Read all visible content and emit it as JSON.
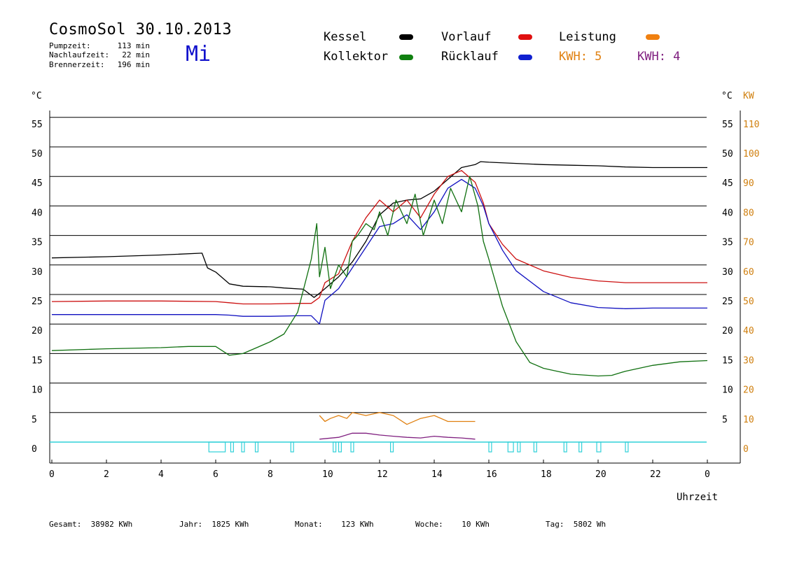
{
  "header": {
    "title": "CosmoSol 30.10.2013",
    "day": "Mi",
    "info": [
      {
        "label": "Pumpzeit:",
        "value": "113 min"
      },
      {
        "label": "Nachlaufzeit:",
        "value": "22 min"
      },
      {
        "label": "Brennerzeit:",
        "value": "196 min"
      }
    ]
  },
  "legend": {
    "kessel": {
      "label": "Kessel",
      "color": "#000000"
    },
    "vorlauf": {
      "label": "Vorlauf",
      "color": "#e01010"
    },
    "leistung": {
      "label": "Leistung",
      "color": "#f08010"
    },
    "kollektor": {
      "label": "Kollektor",
      "color": "#108010"
    },
    "ruecklauf": {
      "label": "Rücklauf",
      "color": "#1020d0"
    },
    "kwh1": {
      "label": "KWH: 5",
      "color": "#e08010"
    },
    "kwh2": {
      "label": "KWH: 4",
      "color": "#802080"
    }
  },
  "footer": {
    "gesamt": {
      "label": "Gesamt:",
      "value": "38982 KWh"
    },
    "jahr": {
      "label": "Jahr:",
      "value": "1825 KWh"
    },
    "monat": {
      "label": "Monat:",
      "value": "123 KWh"
    },
    "woche": {
      "label": "Woche:",
      "value": "10 KWh"
    },
    "tag": {
      "label": "Tag:",
      "value": "5802 Wh"
    }
  },
  "chart_data": {
    "type": "line",
    "xlabel": "Uhrzeit",
    "ylabel_left": "°C",
    "ylabel_right_1": "°C",
    "ylabel_right_2": "KW",
    "x_ticks": [
      "0",
      "2",
      "4",
      "6",
      "8",
      "10",
      "12",
      "14",
      "16",
      "18",
      "20",
      "22",
      "0"
    ],
    "y_ticks_left": [
      "0",
      "5",
      "10",
      "15",
      "20",
      "25",
      "30",
      "35",
      "40",
      "45",
      "50",
      "55"
    ],
    "y_ticks_right_c": [
      "5",
      "10",
      "15",
      "20",
      "25",
      "30",
      "35",
      "40",
      "45",
      "50",
      "55"
    ],
    "y_ticks_right_kw": [
      "0",
      "10",
      "20",
      "30",
      "40",
      "50",
      "60",
      "70",
      "80",
      "90",
      "100",
      "110"
    ],
    "xlim": [
      0,
      24
    ],
    "ylim": [
      -3.5,
      58
    ],
    "grid": true,
    "colors": {
      "kessel": "#000000",
      "vorlauf": "#cc1010",
      "ruecklauf": "#1010c0",
      "kollektor": "#107010",
      "leistung": "#e08010",
      "kwh": "#802080",
      "pumpe": "#30d0d8"
    },
    "series": [
      {
        "name": "Kessel",
        "x": [
          0,
          2,
          4,
          5.5,
          5.7,
          6,
          6.5,
          7,
          8,
          8.5,
          9.2,
          9.6,
          9.8,
          10,
          10.5,
          11,
          11.5,
          12,
          12.5,
          13,
          13.5,
          14,
          14.5,
          15,
          15.5,
          15.7,
          16,
          17,
          18,
          19,
          20,
          21,
          22,
          23,
          24
        ],
        "y": [
          31.2,
          31.4,
          31.7,
          32.0,
          29.5,
          28.8,
          26.8,
          26.4,
          26.3,
          26.1,
          25.9,
          24.5,
          25.2,
          26.0,
          28.0,
          30.5,
          34.0,
          38.5,
          40.5,
          41.0,
          41.2,
          42.5,
          44.5,
          46.5,
          47.0,
          47.5,
          47.4,
          47.2,
          47.0,
          46.9,
          46.8,
          46.6,
          46.5,
          46.5,
          46.5
        ]
      },
      {
        "name": "Vorlauf",
        "x": [
          0,
          2,
          4,
          6,
          6.5,
          7,
          8,
          9,
          9.5,
          9.8,
          10,
          10.5,
          11,
          11.5,
          12,
          12.5,
          13,
          13.5,
          14,
          14.5,
          15,
          15.5,
          15.8,
          16,
          16.5,
          17,
          18,
          19,
          20,
          21,
          22,
          23,
          24
        ],
        "y": [
          23.8,
          23.9,
          23.9,
          23.8,
          23.6,
          23.4,
          23.4,
          23.5,
          23.5,
          24.5,
          27.0,
          28.5,
          34.0,
          38.0,
          41.0,
          39.0,
          41.0,
          38.0,
          42.0,
          45.0,
          46.0,
          44.0,
          40.5,
          37.0,
          33.5,
          31.0,
          29.0,
          27.9,
          27.3,
          27.0,
          27.0,
          27.0,
          27.0
        ]
      },
      {
        "name": "Rücklauf",
        "x": [
          0,
          2,
          4,
          6,
          6.5,
          7,
          8,
          9,
          9.5,
          9.8,
          10,
          10.5,
          11,
          11.5,
          12,
          12.5,
          13,
          13.5,
          14,
          14.5,
          15,
          15.5,
          15.8,
          16,
          16.5,
          17,
          18,
          19,
          20,
          21,
          22,
          23,
          24
        ],
        "y": [
          21.6,
          21.6,
          21.6,
          21.6,
          21.5,
          21.3,
          21.3,
          21.4,
          21.4,
          20.0,
          24.0,
          26.0,
          29.5,
          33.0,
          36.5,
          37.0,
          38.5,
          36.0,
          39.0,
          43.0,
          44.5,
          43.0,
          40.0,
          37.0,
          32.5,
          29.0,
          25.5,
          23.6,
          22.8,
          22.6,
          22.7,
          22.7,
          22.7
        ]
      },
      {
        "name": "Kollektor",
        "x": [
          0,
          2,
          4,
          5,
          6,
          6.5,
          7,
          7.5,
          8,
          8.5,
          9,
          9.5,
          9.7,
          9.8,
          10,
          10.2,
          10.5,
          10.8,
          11,
          11.2,
          11.5,
          11.8,
          12,
          12.3,
          12.6,
          13,
          13.3,
          13.6,
          14,
          14.3,
          14.6,
          15,
          15.3,
          15.6,
          15.8,
          16,
          16.5,
          17,
          17.5,
          18,
          18.5,
          19,
          20,
          20.5,
          21,
          22,
          23,
          24
        ],
        "y": [
          15.5,
          15.8,
          16.0,
          16.2,
          16.2,
          14.7,
          15.0,
          16.0,
          17.0,
          18.3,
          22.0,
          31.0,
          37.0,
          28.0,
          33.0,
          26.0,
          30.0,
          28.0,
          34.0,
          35.0,
          37.0,
          36.0,
          39.0,
          35.0,
          41.0,
          37.0,
          42.0,
          35.0,
          41.0,
          37.0,
          43.0,
          39.0,
          45.0,
          40.0,
          34.0,
          31.0,
          23.0,
          17.0,
          13.5,
          12.5,
          12.0,
          11.5,
          11.2,
          11.3,
          12.0,
          13.0,
          13.6,
          13.8
        ]
      },
      {
        "name": "Leistung",
        "x": [
          9.8,
          10.0,
          10.2,
          10.5,
          10.8,
          11.0,
          11.5,
          12.0,
          12.5,
          13.0,
          13.5,
          14.0,
          14.5,
          15.0,
          15.5
        ],
        "y": [
          4.5,
          3.5,
          4.0,
          4.5,
          4.0,
          5.0,
          4.5,
          5.0,
          4.5,
          3.0,
          4.0,
          4.5,
          3.5,
          3.5,
          3.5
        ]
      },
      {
        "name": "KWH",
        "x": [
          9.8,
          10.5,
          11,
          11.5,
          12,
          12.5,
          13,
          13.5,
          14,
          14.5,
          15,
          15.5
        ],
        "y": [
          0.5,
          0.8,
          1.5,
          1.5,
          1.2,
          1.0,
          0.8,
          0.7,
          1.0,
          0.8,
          0.7,
          0.5
        ]
      }
    ],
    "pump_on_intervals": [
      [
        5.75,
        6.35
      ],
      [
        6.55,
        6.65
      ],
      [
        6.95,
        7.05
      ],
      [
        7.45,
        7.55
      ],
      [
        8.75,
        8.85
      ],
      [
        10.3,
        10.4
      ],
      [
        10.5,
        10.6
      ],
      [
        10.95,
        11.05
      ],
      [
        12.4,
        12.5
      ],
      [
        16.0,
        16.1
      ],
      [
        16.7,
        16.9
      ],
      [
        17.05,
        17.15
      ],
      [
        17.65,
        17.75
      ],
      [
        18.75,
        18.85
      ],
      [
        19.3,
        19.4
      ],
      [
        19.95,
        20.1
      ],
      [
        21.0,
        21.1
      ]
    ]
  }
}
